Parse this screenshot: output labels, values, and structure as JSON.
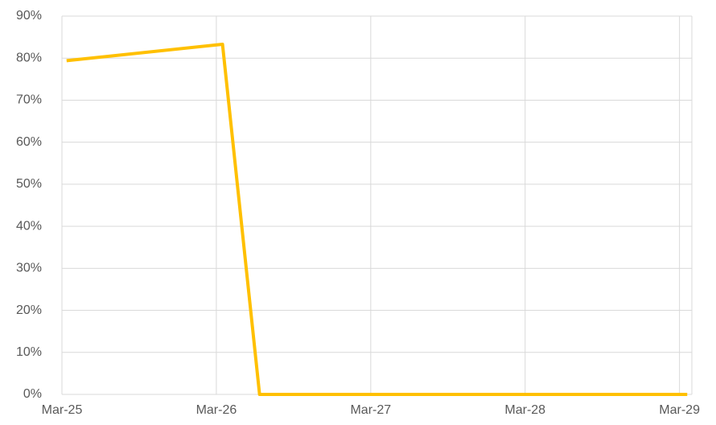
{
  "chart_data": {
    "type": "line",
    "x": [
      25.03,
      26.04,
      26.28,
      29.05
    ],
    "values": [
      79.4,
      83.3,
      0,
      0
    ],
    "color": "#ffc000",
    "xlim": [
      25,
      29.08
    ],
    "xticks": [
      {
        "value": 25,
        "label": "Mar-25"
      },
      {
        "value": 26,
        "label": "Mar-26"
      },
      {
        "value": 27,
        "label": "Mar-27"
      },
      {
        "value": 28,
        "label": "Mar-28"
      },
      {
        "value": 29,
        "label": "Mar-29"
      }
    ],
    "ylim": [
      0,
      90
    ],
    "yticks": [
      {
        "value": 0,
        "label": "0%"
      },
      {
        "value": 10,
        "label": "10%"
      },
      {
        "value": 20,
        "label": "20%"
      },
      {
        "value": 30,
        "label": "30%"
      },
      {
        "value": 40,
        "label": "40%"
      },
      {
        "value": 50,
        "label": "50%"
      },
      {
        "value": 60,
        "label": "60%"
      },
      {
        "value": 70,
        "label": "70%"
      },
      {
        "value": 80,
        "label": "80%"
      },
      {
        "value": 90,
        "label": "90%"
      }
    ],
    "grid": true
  }
}
